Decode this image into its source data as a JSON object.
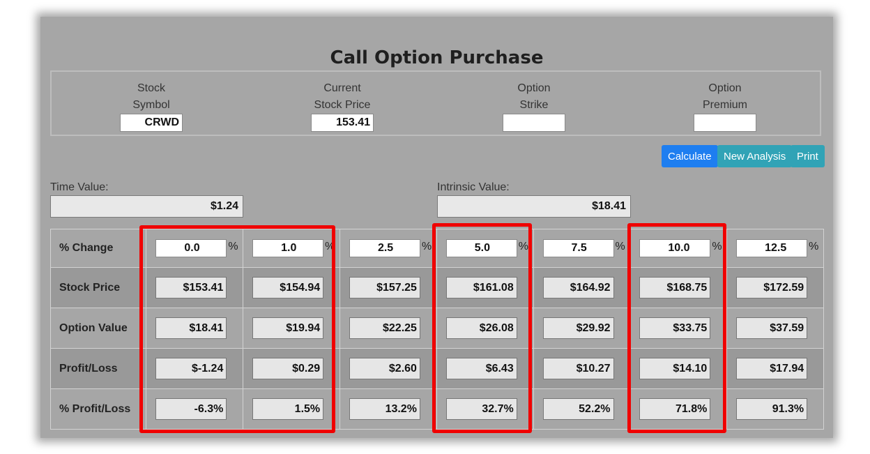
{
  "title": "Call Option Purchase",
  "inputs": {
    "symbol_label": [
      "Stock",
      "Symbol"
    ],
    "symbol_value": "CRWD",
    "price_label": [
      "Current",
      "Stock Price"
    ],
    "price_value": "153.41",
    "strike_label": [
      "Option",
      "Strike"
    ],
    "strike_value": "",
    "premium_label": [
      "Option",
      "Premium"
    ],
    "premium_value": ""
  },
  "buttons": {
    "calculate": "Calculate",
    "new_analysis": "New Analysis",
    "print": "Print"
  },
  "summary": {
    "time_value_label": "Time Value:",
    "time_value": "$1.24",
    "intrinsic_value_label": "Intrinsic Value:",
    "intrinsic_value": "$18.41"
  },
  "table": {
    "pct_sign": "%",
    "row_labels": [
      "% Change",
      "Stock Price",
      "Option Value",
      "Profit/Loss",
      "% Profit/Loss"
    ],
    "pct_change": [
      "0.0",
      "1.0",
      "2.5",
      "5.0",
      "7.5",
      "10.0",
      "12.5"
    ],
    "stock_price": [
      "$153.41",
      "$154.94",
      "$157.25",
      "$161.08",
      "$164.92",
      "$168.75",
      "$172.59"
    ],
    "option_value": [
      "$18.41",
      "$19.94",
      "$22.25",
      "$26.08",
      "$29.92",
      "$33.75",
      "$37.59"
    ],
    "profit_loss": [
      "$-1.24",
      "$0.29",
      "$2.60",
      "$6.43",
      "$10.27",
      "$14.10",
      "$17.94"
    ],
    "pct_profit_loss": [
      "-6.3%",
      "1.5%",
      "13.2%",
      "32.7%",
      "52.2%",
      "71.8%",
      "91.3%"
    ]
  },
  "colors": {
    "highlight": "#f00000",
    "calculate_button": "#1e7ef0",
    "secondary_button": "#31a3b6"
  }
}
